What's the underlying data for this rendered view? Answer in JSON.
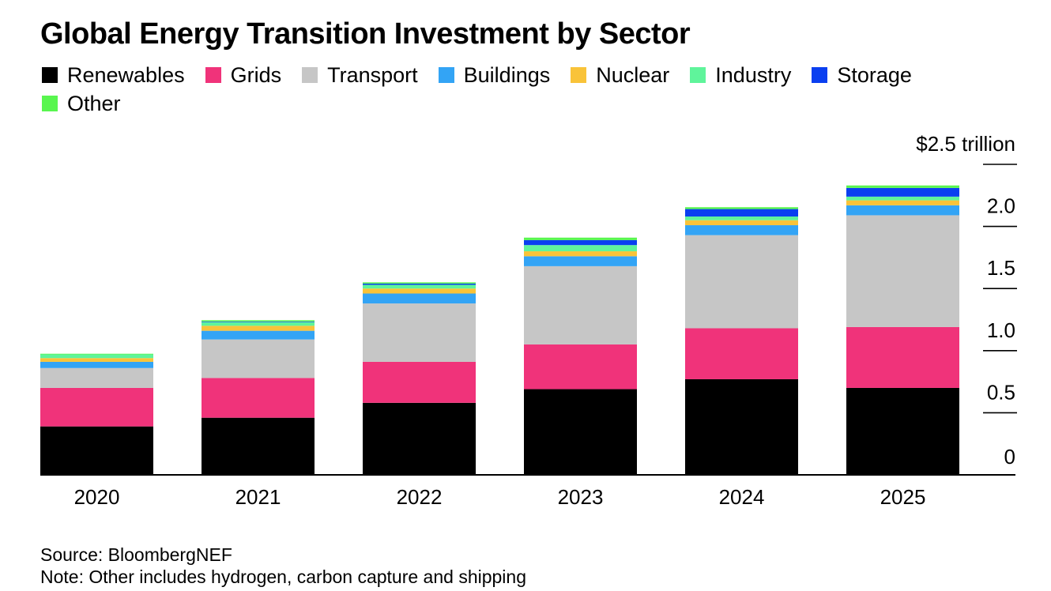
{
  "title": "Global Energy Transition Investment by Sector",
  "footer": {
    "source": "Source: BloombergNEF",
    "note": "Note: Other includes hydrogen, carbon capture and shipping"
  },
  "chart_data": {
    "type": "bar",
    "stacked": true,
    "title": "Global Energy Transition Investment by Sector",
    "categories": [
      "2020",
      "2021",
      "2022",
      "2023",
      "2024",
      "2025"
    ],
    "ylim": [
      0,
      2.5
    ],
    "yticks": [
      {
        "value": 2.5,
        "label": "$2.5 trillion"
      },
      {
        "value": 2.0,
        "label": "2.0"
      },
      {
        "value": 1.5,
        "label": "1.5"
      },
      {
        "value": 1.0,
        "label": "1.0"
      },
      {
        "value": 0.5,
        "label": "0.5"
      },
      {
        "value": 0,
        "label": "0"
      }
    ],
    "legend_position": "top",
    "series": [
      {
        "name": "Renewables",
        "color": "#000000",
        "values": [
          0.39,
          0.46,
          0.58,
          0.69,
          0.77,
          0.7
        ]
      },
      {
        "name": "Grids",
        "color": "#f0337a",
        "values": [
          0.31,
          0.32,
          0.33,
          0.36,
          0.41,
          0.49
        ]
      },
      {
        "name": "Transport",
        "color": "#c6c6c6",
        "values": [
          0.16,
          0.31,
          0.47,
          0.63,
          0.75,
          0.9
        ]
      },
      {
        "name": "Buildings",
        "color": "#33a4f5",
        "values": [
          0.05,
          0.07,
          0.08,
          0.08,
          0.08,
          0.08
        ]
      },
      {
        "name": "Nuclear",
        "color": "#f9c339",
        "values": [
          0.03,
          0.04,
          0.04,
          0.04,
          0.04,
          0.04
        ]
      },
      {
        "name": "Industry",
        "color": "#5ff49b",
        "values": [
          0.03,
          0.03,
          0.03,
          0.05,
          0.03,
          0.03
        ]
      },
      {
        "name": "Storage",
        "color": "#0a3ff0",
        "values": [
          0.0,
          0.005,
          0.01,
          0.04,
          0.06,
          0.07
        ]
      },
      {
        "name": "Other",
        "color": "#59f64f",
        "values": [
          0.005,
          0.01,
          0.01,
          0.02,
          0.015,
          0.02
        ]
      }
    ]
  }
}
